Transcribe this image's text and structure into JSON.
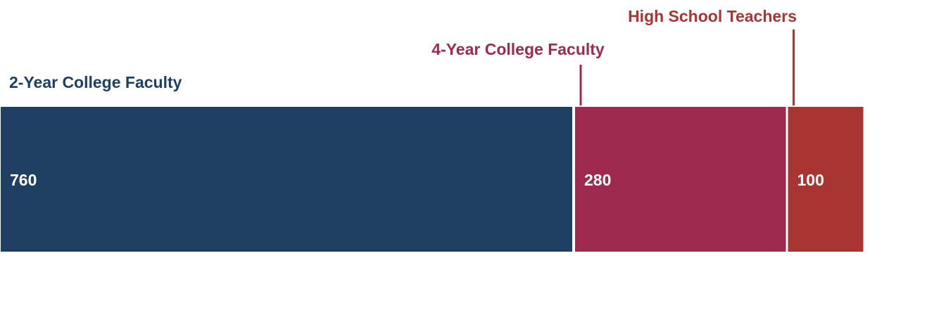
{
  "chart_data": {
    "type": "bar",
    "orientation": "horizontal-stacked",
    "categories": [
      "2-Year College Faculty",
      "4-Year College Faculty",
      "High School Teachers"
    ],
    "values": [
      760,
      280,
      100
    ],
    "colors": [
      "#1f3f63",
      "#9e2a4f",
      "#a93532"
    ],
    "data_labels": [
      "760",
      "280",
      "100"
    ],
    "title": "",
    "xlabel": "",
    "ylabel": "",
    "grid": false,
    "legend": "none (direct labels above segments)"
  }
}
